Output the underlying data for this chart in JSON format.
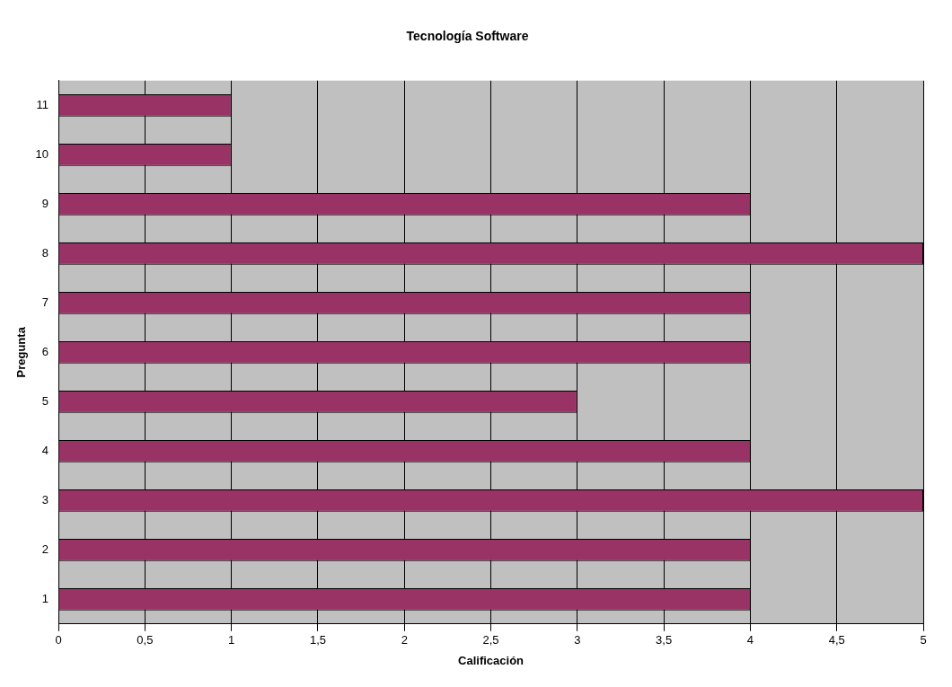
{
  "chart_data": {
    "type": "bar",
    "orientation": "horizontal",
    "title": "Tecnología Software",
    "xlabel": "Calificación",
    "ylabel": "Pregunta",
    "categories": [
      "11",
      "10",
      "9",
      "8",
      "7",
      "6",
      "5",
      "4",
      "3",
      "2",
      "1"
    ],
    "values": [
      1,
      1,
      4,
      5,
      4,
      4,
      3,
      4,
      5,
      4,
      4
    ],
    "color": "#993366",
    "xlim": [
      0,
      5
    ],
    "xticks": [
      0,
      {
        "value": 0.5,
        "label": "0,5"
      },
      1,
      {
        "value": 1.5,
        "label": "1,5"
      },
      2,
      {
        "value": 2.5,
        "label": "2,5"
      },
      3,
      {
        "value": 3.5,
        "label": "3,5"
      },
      4,
      {
        "value": 4.5,
        "label": "4,5"
      },
      5
    ],
    "grid": "x",
    "legend": false
  }
}
